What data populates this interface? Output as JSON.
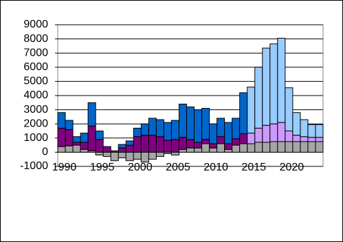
{
  "chart_data": {
    "type": "stacked-bar",
    "categories": [
      "1990",
      null,
      null,
      null,
      null,
      "1995",
      null,
      null,
      null,
      null,
      "2000",
      null,
      null,
      null,
      null,
      "2005",
      null,
      null,
      null,
      null,
      "2010",
      null,
      null,
      null,
      null,
      "2015",
      null,
      null,
      null,
      null,
      "2020",
      null,
      null,
      null,
      null
    ],
    "series": [
      {
        "color": "#a6a6a6",
        "values": [
          400,
          450,
          500,
          200,
          100,
          -200,
          -300,
          -600,
          -400,
          -600,
          -500,
          -700,
          -500,
          -300,
          -100,
          -200,
          200,
          300,
          300,
          600,
          300,
          600,
          200,
          500,
          600,
          600,
          700,
          700,
          750,
          750,
          750,
          750,
          750,
          750,
          750
        ]
      },
      {
        "color": "#800080",
        "values": [
          1300,
          1150,
          200,
          500,
          1750,
          900,
          400,
          100,
          300,
          500,
          1100,
          1200,
          1200,
          1100,
          850,
          900,
          850,
          600,
          400,
          300,
          300,
          500,
          400,
          450,
          700,
          null,
          null,
          null,
          null,
          null,
          null,
          null,
          null,
          null,
          null
        ]
      },
      {
        "color": "#cc99ff",
        "values": [
          null,
          null,
          null,
          null,
          null,
          null,
          null,
          null,
          null,
          null,
          null,
          null,
          null,
          null,
          null,
          null,
          null,
          null,
          null,
          null,
          null,
          null,
          null,
          null,
          null,
          750,
          1000,
          1200,
          1250,
          1350,
          750,
          450,
          350,
          300,
          300
        ]
      },
      {
        "color": "#0066cc",
        "values": [
          1100,
          650,
          400,
          650,
          1650,
          600,
          0,
          0,
          250,
          300,
          600,
          800,
          1200,
          1200,
          1250,
          1350,
          2350,
          2300,
          2300,
          2200,
          1400,
          1300,
          1500,
          1450,
          2900,
          null,
          null,
          null,
          null,
          null,
          null,
          null,
          null,
          null,
          null
        ]
      },
      {
        "color": "#99ccff",
        "values": [
          null,
          null,
          null,
          null,
          null,
          null,
          null,
          null,
          null,
          null,
          null,
          null,
          null,
          null,
          null,
          null,
          null,
          null,
          null,
          null,
          null,
          null,
          null,
          null,
          null,
          3250,
          4300,
          5450,
          5650,
          5950,
          3050,
          1600,
          1200,
          900,
          900
        ]
      }
    ],
    "ylim": [
      -1000,
      9000
    ],
    "yticks": [
      -1000,
      0,
      1000,
      2000,
      3000,
      4000,
      5000,
      6000,
      7000,
      8000,
      9000
    ],
    "grid": true
  }
}
